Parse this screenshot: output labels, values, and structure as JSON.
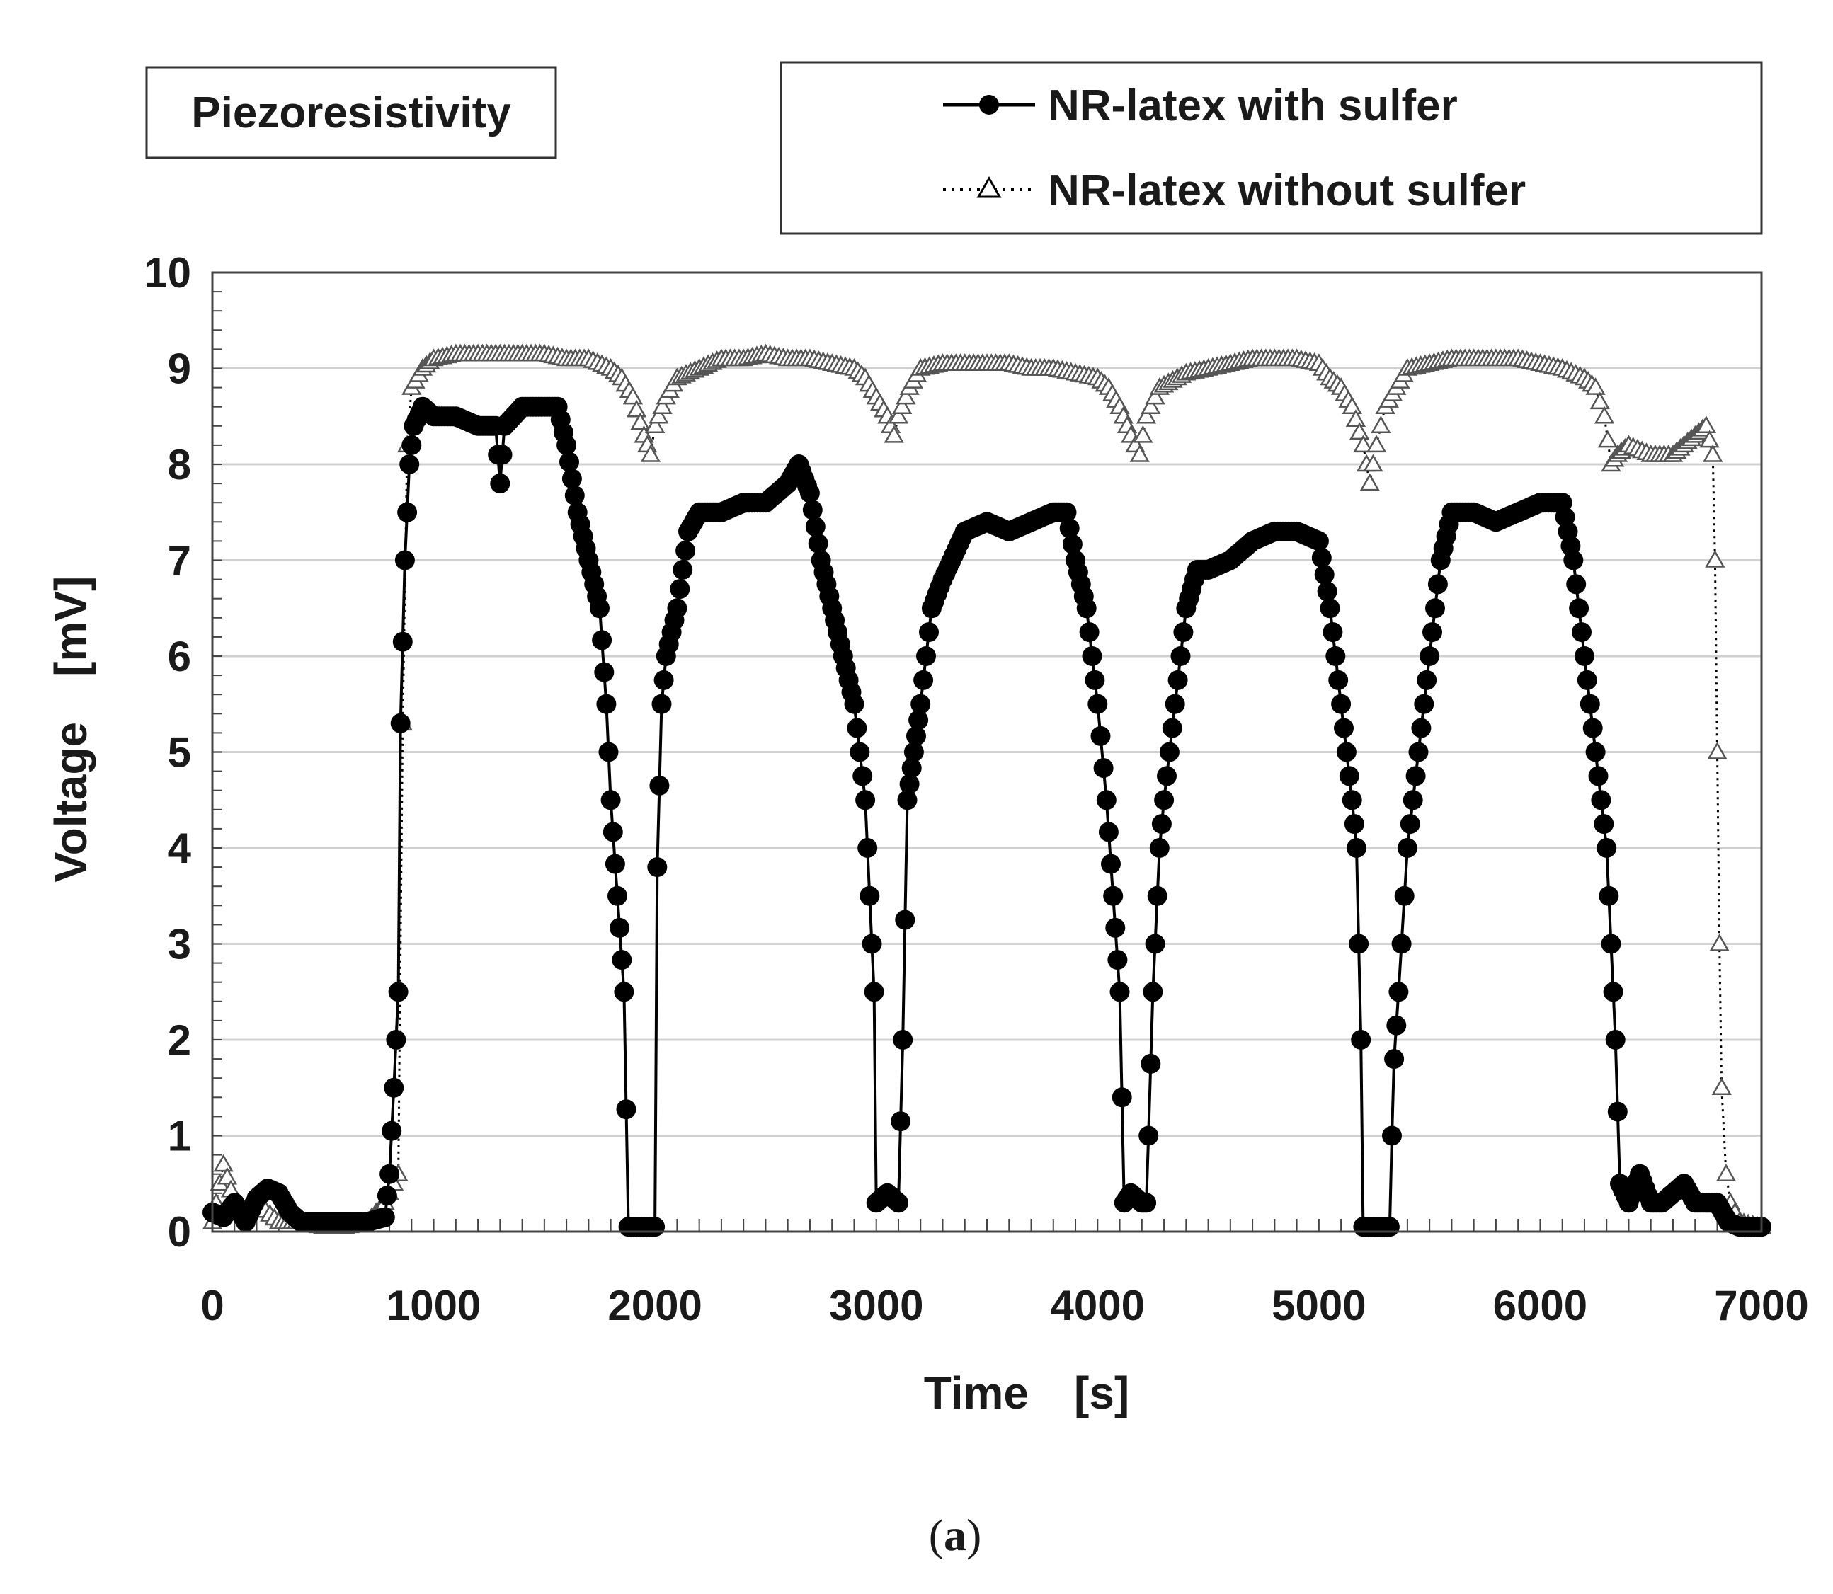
{
  "chart_data": {
    "type": "line",
    "annotation_box": "Piezoresistivity",
    "xlabel": "Time [s]",
    "ylabel": "Voltage [mV]",
    "xlim": [
      0,
      7000
    ],
    "ylim": [
      0,
      10
    ],
    "x_ticks": [
      0,
      1000,
      2000,
      3000,
      4000,
      5000,
      6000,
      7000
    ],
    "y_ticks": [
      0,
      1,
      2,
      3,
      4,
      5,
      6,
      7,
      8,
      9,
      10
    ],
    "grid": "horizontal",
    "legend_position": "top-right",
    "caption_prefix": "(",
    "caption_letter": "a",
    "caption_suffix": ")",
    "series": [
      {
        "name": "NR-latex with sulfer",
        "marker": "filled-circle",
        "line_style": "solid",
        "color": "#000000",
        "points": [
          [
            0,
            0.2
          ],
          [
            50,
            0.15
          ],
          [
            100,
            0.3
          ],
          [
            150,
            0.1
          ],
          [
            200,
            0.35
          ],
          [
            250,
            0.45
          ],
          [
            300,
            0.4
          ],
          [
            350,
            0.2
          ],
          [
            400,
            0.1
          ],
          [
            500,
            0.1
          ],
          [
            600,
            0.1
          ],
          [
            700,
            0.1
          ],
          [
            780,
            0.15
          ],
          [
            800,
            0.6
          ],
          [
            820,
            1.5
          ],
          [
            840,
            2.5
          ],
          [
            850,
            5.3
          ],
          [
            870,
            7.0
          ],
          [
            890,
            8.0
          ],
          [
            910,
            8.4
          ],
          [
            950,
            8.6
          ],
          [
            1000,
            8.5
          ],
          [
            1100,
            8.5
          ],
          [
            1200,
            8.4
          ],
          [
            1280,
            8.4
          ],
          [
            1300,
            7.8
          ],
          [
            1320,
            8.4
          ],
          [
            1400,
            8.6
          ],
          [
            1500,
            8.6
          ],
          [
            1560,
            8.6
          ],
          [
            1600,
            8.2
          ],
          [
            1650,
            7.5
          ],
          [
            1700,
            7.0
          ],
          [
            1750,
            6.5
          ],
          [
            1780,
            5.5
          ],
          [
            1800,
            4.5
          ],
          [
            1830,
            3.5
          ],
          [
            1860,
            2.5
          ],
          [
            1880,
            0.05
          ],
          [
            1950,
            0.05
          ],
          [
            2000,
            0.05
          ],
          [
            2010,
            3.8
          ],
          [
            2030,
            5.5
          ],
          [
            2050,
            6.0
          ],
          [
            2100,
            6.5
          ],
          [
            2150,
            7.3
          ],
          [
            2200,
            7.5
          ],
          [
            2300,
            7.5
          ],
          [
            2400,
            7.6
          ],
          [
            2500,
            7.6
          ],
          [
            2600,
            7.8
          ],
          [
            2650,
            8.0
          ],
          [
            2700,
            7.7
          ],
          [
            2750,
            7.0
          ],
          [
            2800,
            6.5
          ],
          [
            2850,
            6.0
          ],
          [
            2900,
            5.5
          ],
          [
            2950,
            4.5
          ],
          [
            2970,
            3.5
          ],
          [
            2990,
            2.5
          ],
          [
            3000,
            0.3
          ],
          [
            3050,
            0.4
          ],
          [
            3100,
            0.3
          ],
          [
            3120,
            2.0
          ],
          [
            3140,
            4.5
          ],
          [
            3170,
            5.0
          ],
          [
            3200,
            5.5
          ],
          [
            3250,
            6.5
          ],
          [
            3300,
            6.8
          ],
          [
            3400,
            7.3
          ],
          [
            3500,
            7.4
          ],
          [
            3600,
            7.3
          ],
          [
            3700,
            7.4
          ],
          [
            3800,
            7.5
          ],
          [
            3860,
            7.5
          ],
          [
            3900,
            7.0
          ],
          [
            3950,
            6.5
          ],
          [
            4000,
            5.5
          ],
          [
            4040,
            4.5
          ],
          [
            4070,
            3.5
          ],
          [
            4100,
            2.5
          ],
          [
            4120,
            0.3
          ],
          [
            4150,
            0.4
          ],
          [
            4200,
            0.3
          ],
          [
            4220,
            0.3
          ],
          [
            4230,
            1.0
          ],
          [
            4250,
            2.5
          ],
          [
            4280,
            4.0
          ],
          [
            4300,
            4.5
          ],
          [
            4350,
            5.5
          ],
          [
            4400,
            6.5
          ],
          [
            4450,
            6.9
          ],
          [
            4500,
            6.9
          ],
          [
            4600,
            7.0
          ],
          [
            4700,
            7.2
          ],
          [
            4800,
            7.3
          ],
          [
            4900,
            7.3
          ],
          [
            5000,
            7.2
          ],
          [
            5050,
            6.5
          ],
          [
            5100,
            5.5
          ],
          [
            5150,
            4.5
          ],
          [
            5170,
            4.0
          ],
          [
            5190,
            2.0
          ],
          [
            5200,
            0.05
          ],
          [
            5260,
            0.05
          ],
          [
            5320,
            0.05
          ],
          [
            5330,
            1.0
          ],
          [
            5340,
            1.8
          ],
          [
            5360,
            2.5
          ],
          [
            5400,
            4.0
          ],
          [
            5450,
            5.0
          ],
          [
            5500,
            6.0
          ],
          [
            5550,
            7.0
          ],
          [
            5600,
            7.5
          ],
          [
            5700,
            7.5
          ],
          [
            5800,
            7.4
          ],
          [
            5900,
            7.5
          ],
          [
            6000,
            7.6
          ],
          [
            6100,
            7.6
          ],
          [
            6150,
            7.0
          ],
          [
            6200,
            6.0
          ],
          [
            6250,
            5.0
          ],
          [
            6300,
            4.0
          ],
          [
            6320,
            3.0
          ],
          [
            6340,
            2.0
          ],
          [
            6360,
            0.5
          ],
          [
            6400,
            0.3
          ],
          [
            6450,
            0.6
          ],
          [
            6500,
            0.3
          ],
          [
            6550,
            0.3
          ],
          [
            6600,
            0.4
          ],
          [
            6650,
            0.5
          ],
          [
            6700,
            0.3
          ],
          [
            6750,
            0.3
          ],
          [
            6800,
            0.3
          ],
          [
            6850,
            0.1
          ],
          [
            6900,
            0.05
          ],
          [
            7000,
            0.05
          ]
        ]
      },
      {
        "name": "NR-latex without sulfer",
        "marker": "open-triangle",
        "line_style": "dotted",
        "color": "#000000",
        "points": [
          [
            0,
            0.1
          ],
          [
            50,
            0.7
          ],
          [
            100,
            0.3
          ],
          [
            150,
            0.2
          ],
          [
            200,
            0.3
          ],
          [
            300,
            0.1
          ],
          [
            400,
            0.1
          ],
          [
            500,
            0.05
          ],
          [
            600,
            0.05
          ],
          [
            700,
            0.1
          ],
          [
            780,
            0.3
          ],
          [
            820,
            0.5
          ],
          [
            840,
            0.6
          ],
          [
            860,
            5.3
          ],
          [
            880,
            8.2
          ],
          [
            900,
            8.8
          ],
          [
            950,
            9.0
          ],
          [
            1000,
            9.1
          ],
          [
            1100,
            9.15
          ],
          [
            1200,
            9.15
          ],
          [
            1300,
            9.15
          ],
          [
            1400,
            9.15
          ],
          [
            1500,
            9.15
          ],
          [
            1600,
            9.1
          ],
          [
            1700,
            9.1
          ],
          [
            1800,
            9.0
          ],
          [
            1850,
            8.9
          ],
          [
            1900,
            8.7
          ],
          [
            1950,
            8.3
          ],
          [
            1980,
            8.1
          ],
          [
            2000,
            8.4
          ],
          [
            2050,
            8.7
          ],
          [
            2100,
            8.9
          ],
          [
            2200,
            9.0
          ],
          [
            2300,
            9.1
          ],
          [
            2400,
            9.1
          ],
          [
            2500,
            9.15
          ],
          [
            2600,
            9.1
          ],
          [
            2700,
            9.1
          ],
          [
            2800,
            9.05
          ],
          [
            2900,
            9.0
          ],
          [
            2950,
            8.9
          ],
          [
            3000,
            8.7
          ],
          [
            3050,
            8.5
          ],
          [
            3080,
            8.3
          ],
          [
            3100,
            8.5
          ],
          [
            3150,
            8.8
          ],
          [
            3200,
            9.0
          ],
          [
            3300,
            9.05
          ],
          [
            3400,
            9.05
          ],
          [
            3500,
            9.05
          ],
          [
            3600,
            9.05
          ],
          [
            3700,
            9.0
          ],
          [
            3800,
            9.0
          ],
          [
            3900,
            8.95
          ],
          [
            4000,
            8.9
          ],
          [
            4050,
            8.8
          ],
          [
            4100,
            8.6
          ],
          [
            4150,
            8.3
          ],
          [
            4190,
            8.1
          ],
          [
            4220,
            8.5
          ],
          [
            4280,
            8.8
          ],
          [
            4400,
            8.95
          ],
          [
            4500,
            9.0
          ],
          [
            4600,
            9.05
          ],
          [
            4700,
            9.1
          ],
          [
            4800,
            9.1
          ],
          [
            4900,
            9.1
          ],
          [
            5000,
            9.05
          ],
          [
            5050,
            8.9
          ],
          [
            5100,
            8.8
          ],
          [
            5150,
            8.6
          ],
          [
            5200,
            8.2
          ],
          [
            5230,
            7.8
          ],
          [
            5260,
            8.2
          ],
          [
            5300,
            8.6
          ],
          [
            5350,
            8.8
          ],
          [
            5400,
            9.0
          ],
          [
            5500,
            9.05
          ],
          [
            5600,
            9.1
          ],
          [
            5700,
            9.1
          ],
          [
            5800,
            9.1
          ],
          [
            5900,
            9.1
          ],
          [
            6000,
            9.05
          ],
          [
            6100,
            9.0
          ],
          [
            6200,
            8.9
          ],
          [
            6250,
            8.8
          ],
          [
            6290,
            8.5
          ],
          [
            6320,
            8.0
          ],
          [
            6350,
            8.1
          ],
          [
            6400,
            8.2
          ],
          [
            6500,
            8.1
          ],
          [
            6600,
            8.1
          ],
          [
            6650,
            8.2
          ],
          [
            6700,
            8.3
          ],
          [
            6750,
            8.4
          ],
          [
            6780,
            8.1
          ],
          [
            6790,
            7.0
          ],
          [
            6800,
            5.0
          ],
          [
            6810,
            3.0
          ],
          [
            6820,
            1.5
          ],
          [
            6840,
            0.6
          ],
          [
            6860,
            0.3
          ],
          [
            6900,
            0.1
          ],
          [
            7000,
            0.05
          ]
        ]
      }
    ]
  }
}
